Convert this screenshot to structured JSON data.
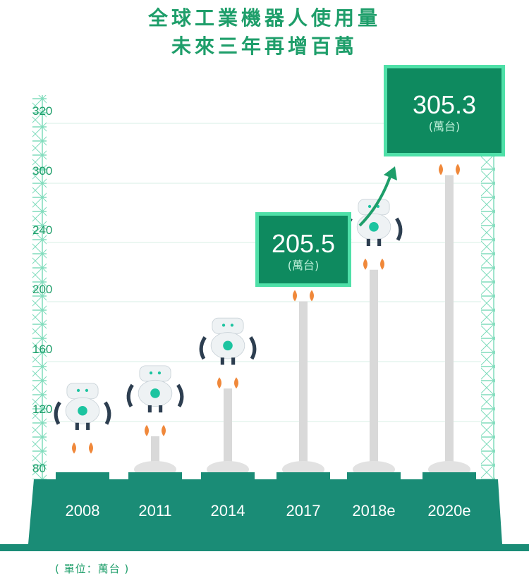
{
  "title_line1": "全球工業機器人使用量",
  "title_line2": "未來三年再增百萬",
  "unit_note": "( 單位：萬台 )",
  "colors": {
    "brand_green": "#1e9e6a",
    "platform_teal": "#1a8c76",
    "callout_dark": "#0e8a5f",
    "callout_border": "#4fe0a8",
    "flame": "#f0883a",
    "robot_teal": "#1cc4a0",
    "robot_dark": "#2d3e50"
  },
  "chart_data": {
    "type": "bar",
    "categories": [
      "2008",
      "2011",
      "2014",
      "2017",
      "2018e",
      "2020e"
    ],
    "series": [
      {
        "values": [
          103.5,
          115.3,
          147.2,
          205.5,
          226.8,
          305.3
        ]
      }
    ],
    "yticks": [
      "80",
      "120",
      "160",
      "200",
      "240",
      "300",
      "320"
    ],
    "annotations": [
      {
        "category": "2017",
        "value": "205.5",
        "unit": "(萬台)"
      },
      {
        "category": "2020e",
        "value": "305.3",
        "unit": "(萬台)"
      }
    ]
  }
}
